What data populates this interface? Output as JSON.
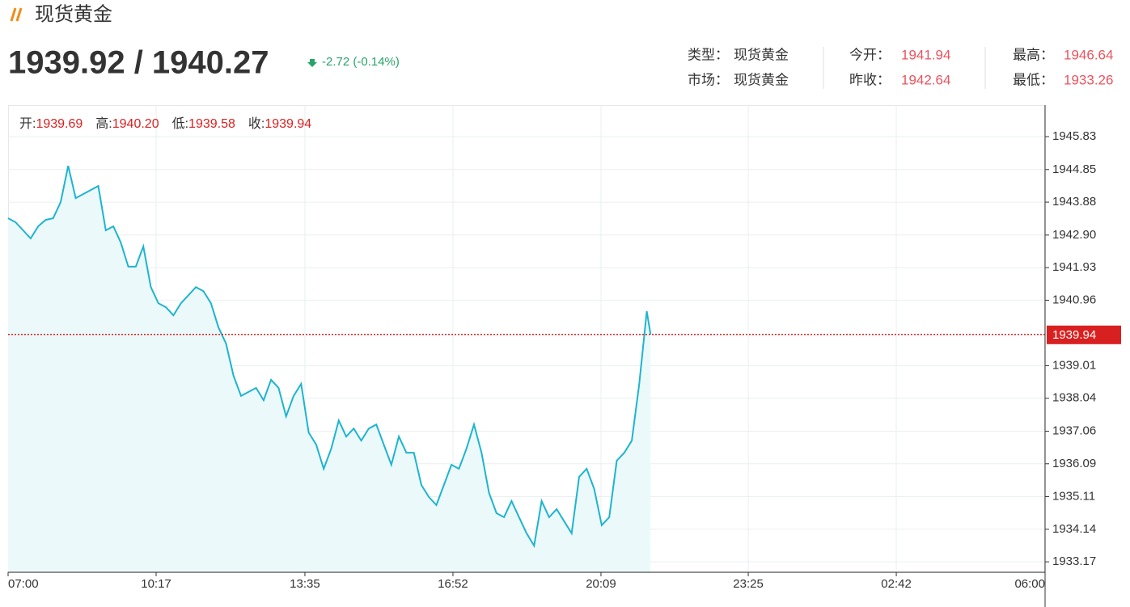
{
  "header": {
    "title": "现货黄金",
    "price": "1939.92 / 1940.27",
    "change": "-2.72 (-0.14%)",
    "info": [
      [
        {
          "label": "类型：",
          "value": "现货黄金"
        },
        {
          "label": "今开：",
          "value": "1941.94"
        },
        {
          "label": "最高：",
          "value": "1946.64"
        }
      ],
      [
        {
          "label": "市场：",
          "value": "现货黄金"
        },
        {
          "label": "昨收：",
          "value": "1942.64"
        },
        {
          "label": "最低：",
          "value": "1933.26"
        }
      ]
    ]
  },
  "chart_data": {
    "type": "line",
    "color": "#1eb4cf",
    "area_color": "#ebf9fb",
    "ohlc": [
      {
        "label": "开:",
        "value": "1939.69"
      },
      {
        "label": "高:",
        "value": "1940.20"
      },
      {
        "label": "低:",
        "value": "1939.58"
      },
      {
        "label": "收:",
        "value": "1939.94"
      }
    ],
    "x": [
      "07:00",
      "07:10",
      "07:20",
      "07:30",
      "07:40",
      "07:50",
      "08:00",
      "08:10",
      "08:20",
      "08:30",
      "08:40",
      "08:50",
      "09:00",
      "09:10",
      "09:20",
      "09:30",
      "09:40",
      "09:50",
      "10:00",
      "10:10",
      "10:20",
      "10:30",
      "10:40",
      "10:50",
      "11:00",
      "11:10",
      "11:20",
      "11:30",
      "11:40",
      "11:50",
      "12:00",
      "12:10",
      "12:20",
      "12:30",
      "12:40",
      "12:50",
      "13:00",
      "13:10",
      "13:20",
      "13:30",
      "13:40",
      "13:50",
      "14:00",
      "14:10",
      "14:20",
      "14:30",
      "14:40",
      "14:50",
      "15:00",
      "15:10",
      "15:20",
      "15:30",
      "15:40",
      "15:50",
      "16:00",
      "16:10",
      "16:20",
      "16:30",
      "16:40",
      "16:50",
      "17:00",
      "17:10",
      "17:20",
      "17:30",
      "17:40",
      "17:50",
      "18:00",
      "18:10",
      "18:20",
      "18:30",
      "18:40",
      "18:50",
      "19:00",
      "19:10",
      "19:20",
      "19:30",
      "19:40",
      "19:50",
      "20:00",
      "20:10",
      "20:20",
      "20:30",
      "20:40",
      "20:50",
      "21:00",
      "21:10",
      "21:15"
    ],
    "values": [
      1943.4,
      1943.28,
      1943.04,
      1942.8,
      1943.16,
      1943.35,
      1943.4,
      1943.88,
      1944.96,
      1944.0,
      1944.12,
      1944.24,
      1944.36,
      1943.04,
      1943.16,
      1942.68,
      1941.96,
      1941.96,
      1942.56,
      1941.35,
      1940.87,
      1940.75,
      1940.51,
      1940.87,
      1941.11,
      1941.35,
      1941.23,
      1940.87,
      1940.15,
      1939.67,
      1938.71,
      1938.11,
      1938.23,
      1938.35,
      1937.98,
      1938.59,
      1938.35,
      1937.5,
      1938.11,
      1938.47,
      1937.02,
      1936.66,
      1935.94,
      1936.54,
      1937.38,
      1936.9,
      1937.14,
      1936.78,
      1937.14,
      1937.26,
      1936.66,
      1936.06,
      1936.9,
      1936.42,
      1936.42,
      1935.46,
      1935.1,
      1934.86,
      1935.46,
      1936.06,
      1935.94,
      1936.54,
      1937.26,
      1936.42,
      1935.22,
      1934.62,
      1934.5,
      1934.98,
      1934.5,
      1934.02,
      1933.65,
      1934.98,
      1934.5,
      1934.74,
      1934.38,
      1934.02,
      1935.7,
      1935.94,
      1935.34,
      1934.26,
      1934.5,
      1936.18,
      1936.42,
      1936.78,
      1938.47,
      1940.63,
      1939.94
    ],
    "xlim": [
      "07:00",
      "06:00"
    ],
    "xticks": [
      "07:00",
      "10:17",
      "13:35",
      "16:52",
      "20:09",
      "23:25",
      "02:42",
      "06:00"
    ],
    "ylim": [
      1932.86,
      1946.77
    ],
    "yticks": [
      1945.83,
      1944.85,
      1943.88,
      {
        "value": 1942.9,
        "label": "1942.90"
      },
      1941.93,
      1940.96,
      1939.01,
      1938.04,
      1937.06,
      1936.09,
      1935.11,
      1934.14,
      1933.17
    ],
    "reference_line": {
      "value": 1939.94,
      "color": "#d92020"
    },
    "grid": true
  }
}
